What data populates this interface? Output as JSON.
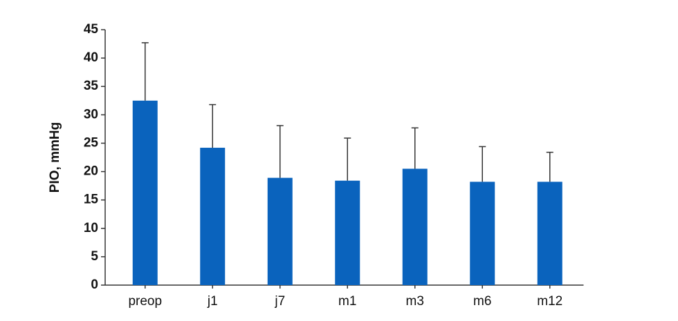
{
  "chart_data": {
    "type": "bar",
    "y_label": "PIO, mmHg",
    "categories": [
      "preop",
      "j1",
      "j7",
      "m1",
      "m3",
      "m6",
      "m12"
    ],
    "values": [
      32.5,
      24.2,
      18.9,
      18.4,
      20.5,
      18.2,
      18.2
    ],
    "errors": [
      10.2,
      7.6,
      9.2,
      7.5,
      7.2,
      6.2,
      5.2
    ],
    "color": "#0a63bd",
    "ylim": [
      0,
      45
    ],
    "yticks": [
      0,
      5,
      10,
      15,
      20,
      25,
      30,
      35,
      40,
      45
    ],
    "grid": false
  }
}
